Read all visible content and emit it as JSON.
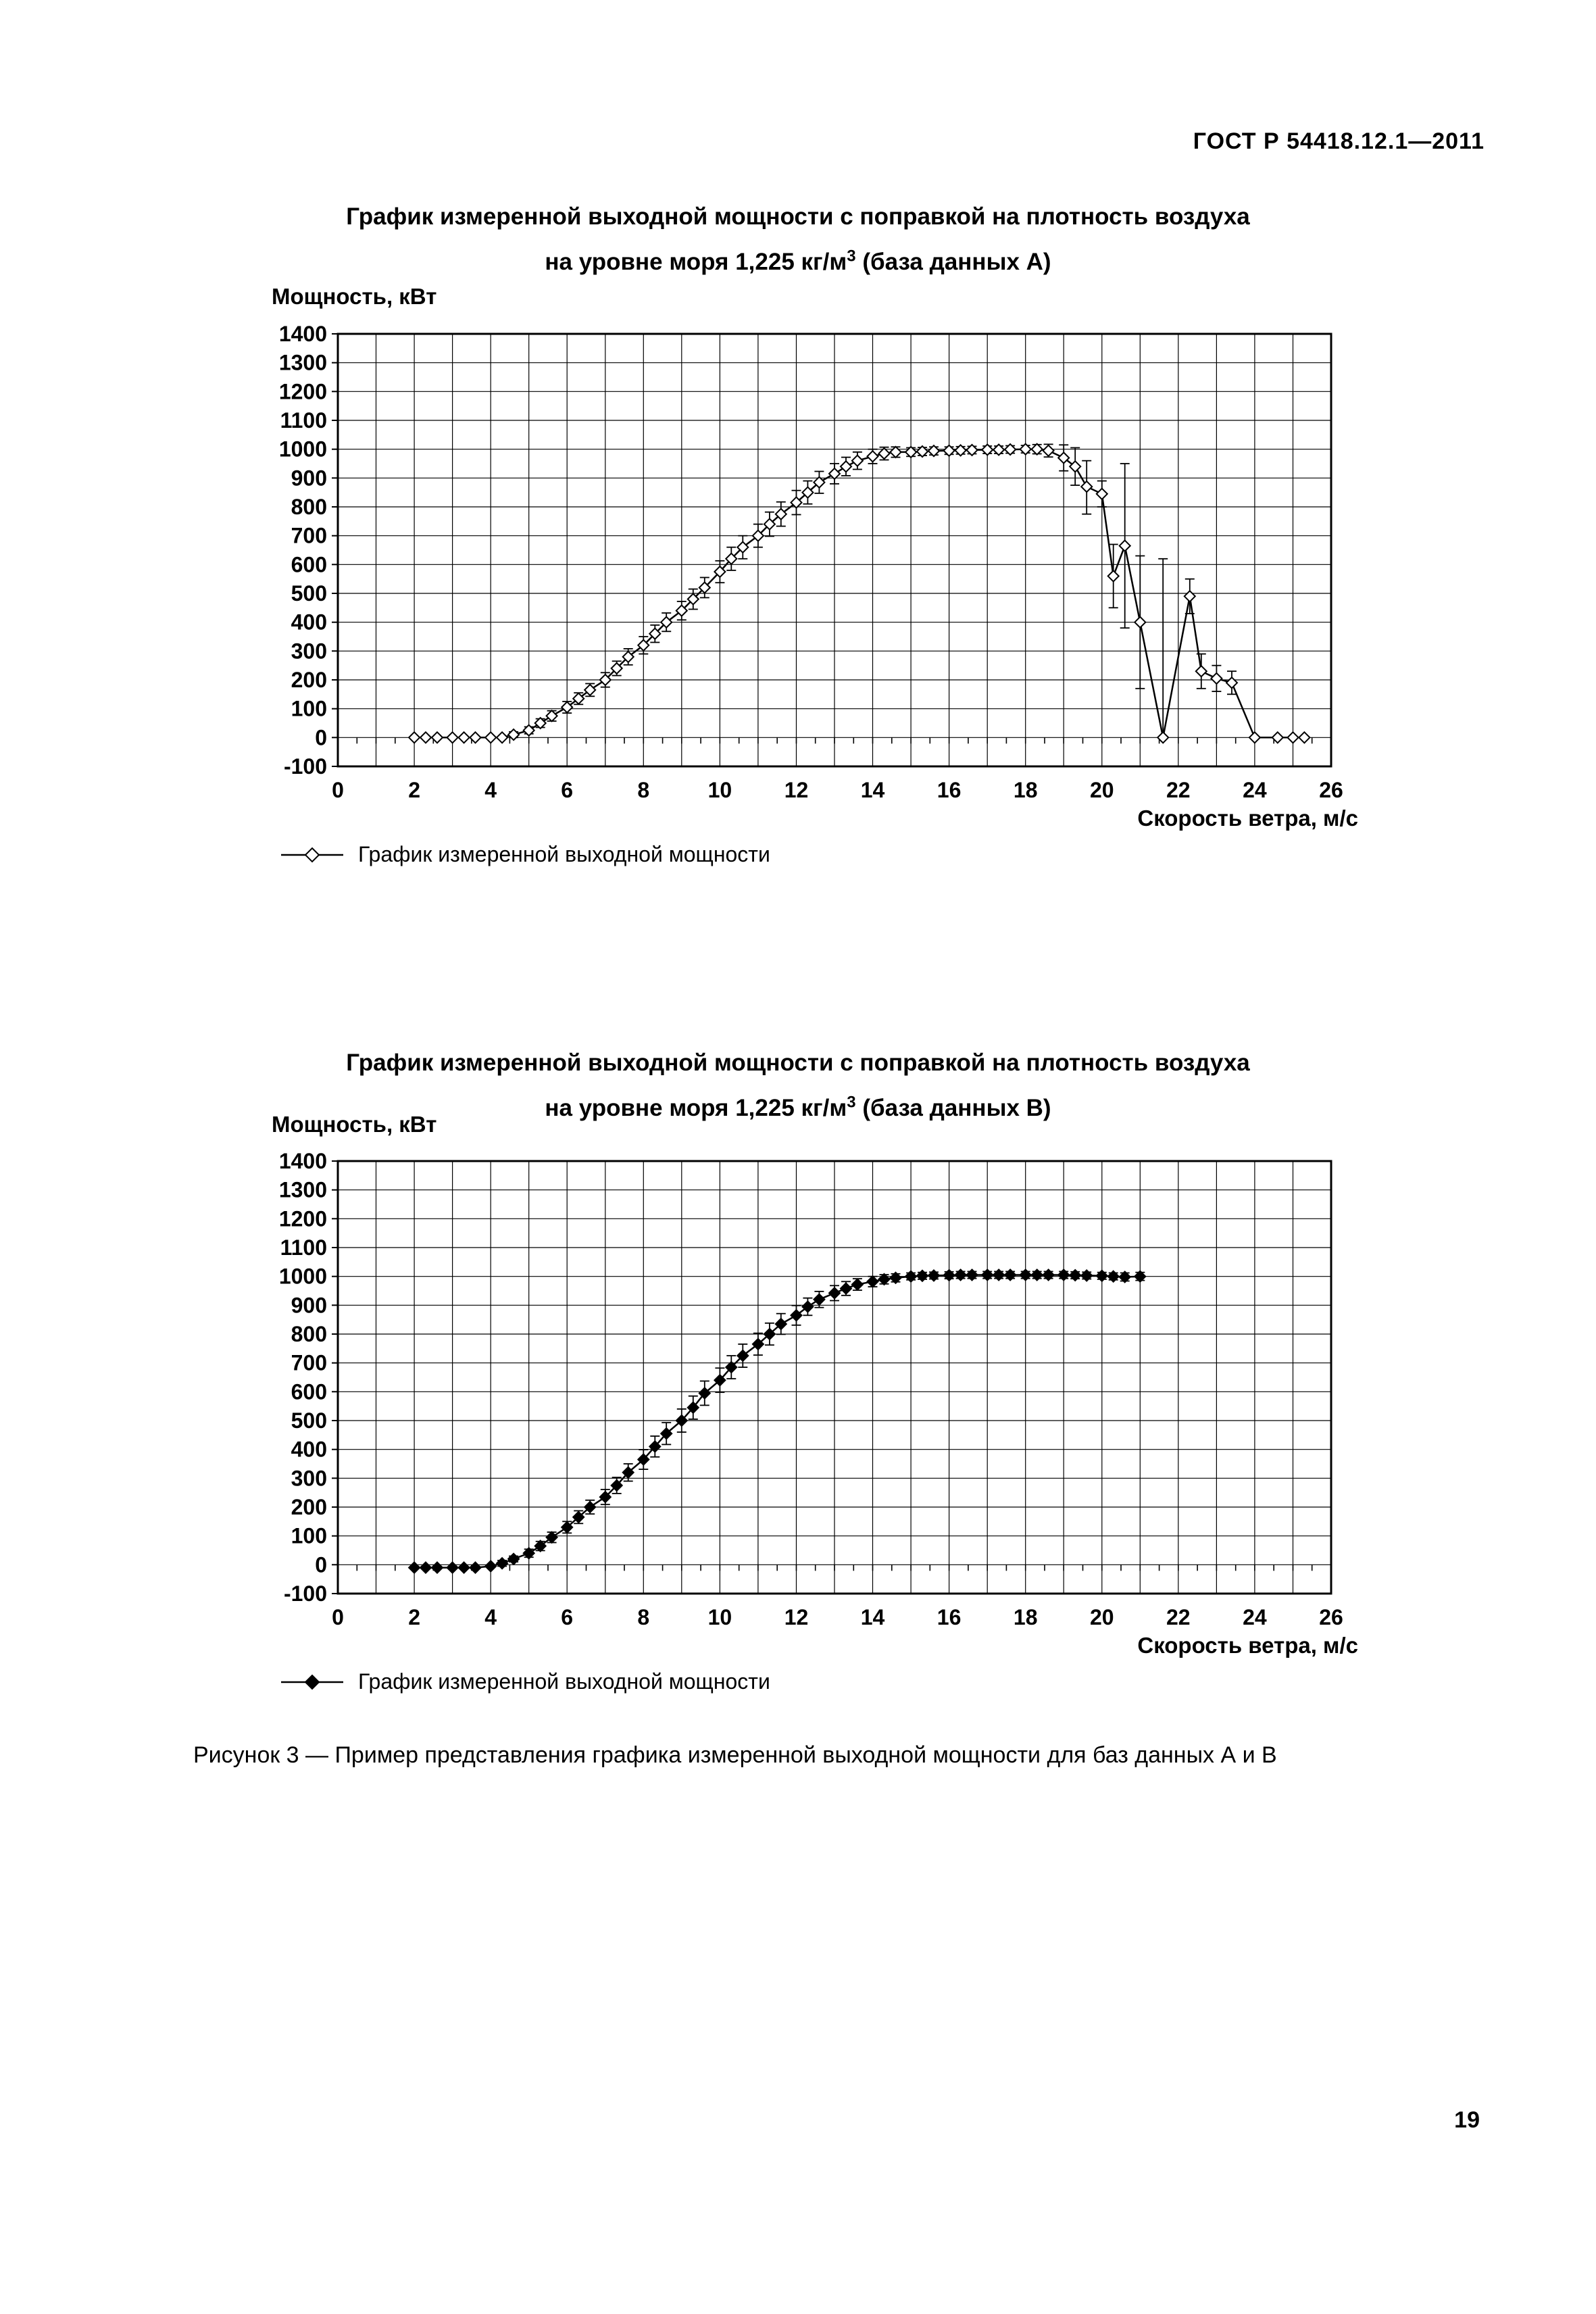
{
  "page": {
    "header": "ГОСТ Р 54418.12.1—2011",
    "caption": "Рисунок 3 — Пример представления графика измеренной выходной мощности для баз данных А и В",
    "page_number": "19"
  },
  "chart_data": [
    {
      "type": "line",
      "title_line1": "График измеренной выходной мощности с поправкой на плотность воздуха",
      "title_line2a": "на уровне моря 1,225 кг/м",
      "title_sup": "3",
      "title_line2b": " (база данных А)",
      "ylabel": "Мощность, кВт",
      "xlabel": "Скорость ветра, м/с",
      "legend": "График измеренной выходной мощности",
      "marker": "open-diamond",
      "xlim": [
        0,
        26
      ],
      "ylim": [
        -100,
        1400
      ],
      "grid_x_step": 1,
      "grid_y_step": 100,
      "zero_tick_step": 0.5,
      "xticks": [
        0,
        2,
        4,
        6,
        8,
        10,
        12,
        14,
        16,
        18,
        20,
        22,
        24,
        26
      ],
      "yticks": [
        -100,
        0,
        100,
        200,
        300,
        400,
        500,
        600,
        700,
        800,
        900,
        1000,
        1100,
        1200,
        1300,
        1400
      ],
      "points": [
        [
          2,
          0,
          0
        ],
        [
          2.3,
          0,
          0
        ],
        [
          2.6,
          0,
          0
        ],
        [
          3,
          0,
          0
        ],
        [
          3.3,
          0,
          0
        ],
        [
          3.6,
          0,
          0
        ],
        [
          4,
          0,
          0
        ],
        [
          4.3,
          0,
          0
        ],
        [
          4.6,
          10,
          10
        ],
        [
          5,
          25,
          12
        ],
        [
          5.3,
          50,
          15
        ],
        [
          5.6,
          75,
          18
        ],
        [
          6,
          105,
          20
        ],
        [
          6.3,
          135,
          20
        ],
        [
          6.6,
          165,
          22
        ],
        [
          7,
          200,
          25
        ],
        [
          7.3,
          240,
          25
        ],
        [
          7.6,
          280,
          28
        ],
        [
          8,
          320,
          30
        ],
        [
          8.3,
          360,
          30
        ],
        [
          8.6,
          400,
          32
        ],
        [
          9,
          440,
          32
        ],
        [
          9.3,
          480,
          35
        ],
        [
          9.6,
          520,
          35
        ],
        [
          10,
          575,
          38
        ],
        [
          10.3,
          620,
          40
        ],
        [
          10.6,
          660,
          40
        ],
        [
          11,
          700,
          40
        ],
        [
          11.3,
          740,
          42
        ],
        [
          11.6,
          775,
          42
        ],
        [
          12,
          815,
          42
        ],
        [
          12.3,
          850,
          40
        ],
        [
          12.6,
          885,
          38
        ],
        [
          13,
          915,
          35
        ],
        [
          13.3,
          940,
          32
        ],
        [
          13.6,
          960,
          30
        ],
        [
          14,
          975,
          25
        ],
        [
          14.3,
          985,
          22
        ],
        [
          14.6,
          990,
          18
        ],
        [
          15,
          990,
          15
        ],
        [
          15.3,
          992,
          14
        ],
        [
          15.6,
          994,
          14
        ],
        [
          16,
          995,
          13
        ],
        [
          16.3,
          996,
          13
        ],
        [
          16.6,
          997,
          13
        ],
        [
          17,
          998,
          13
        ],
        [
          17.3,
          998,
          13
        ],
        [
          17.6,
          999,
          13
        ],
        [
          18,
          1000,
          13
        ],
        [
          18.3,
          1000,
          16
        ],
        [
          18.6,
          995,
          22
        ],
        [
          19,
          970,
          45
        ],
        [
          19.3,
          940,
          65
        ],
        [
          19.6,
          870,
          [
            775,
            960
          ]
        ],
        [
          20,
          845,
          45
        ],
        [
          20.3,
          560,
          [
            450,
            670
          ]
        ],
        [
          20.6,
          665,
          [
            380,
            950
          ]
        ],
        [
          21,
          400,
          [
            170,
            630
          ]
        ],
        [
          21.6,
          0,
          [
            0,
            620
          ]
        ],
        [
          22.3,
          490,
          60
        ],
        [
          22.6,
          230,
          60
        ],
        [
          23,
          205,
          45
        ],
        [
          23.4,
          190,
          40
        ],
        [
          24,
          0,
          0
        ],
        [
          24.6,
          0,
          0
        ],
        [
          25,
          0,
          0
        ],
        [
          25.3,
          0,
          0
        ]
      ]
    },
    {
      "type": "line",
      "title_line1": "График измеренной выходной мощности с поправкой на плотность воздуха",
      "title_line2a": "на уровне моря 1,225 кг/м",
      "title_sup": "3",
      "title_line2b": " (база данных В)",
      "ylabel": "Мощность, кВт",
      "xlabel": "Скорость ветра, м/с",
      "legend": "График измеренной выходной мощности",
      "marker": "filled-diamond",
      "xlim": [
        0,
        26
      ],
      "ylim": [
        -100,
        1400
      ],
      "grid_x_step": 1,
      "grid_y_step": 100,
      "zero_tick_step": 0.5,
      "xticks": [
        0,
        2,
        4,
        6,
        8,
        10,
        12,
        14,
        16,
        18,
        20,
        22,
        24,
        26
      ],
      "yticks": [
        -100,
        0,
        100,
        200,
        300,
        400,
        500,
        600,
        700,
        800,
        900,
        1000,
        1100,
        1200,
        1300,
        1400
      ],
      "points": [
        [
          2,
          -10,
          0
        ],
        [
          2.3,
          -10,
          0
        ],
        [
          2.6,
          -10,
          0
        ],
        [
          3,
          -10,
          0
        ],
        [
          3.3,
          -10,
          0
        ],
        [
          3.6,
          -10,
          0
        ],
        [
          4,
          -5,
          0
        ],
        [
          4.3,
          5,
          10
        ],
        [
          4.6,
          20,
          10
        ],
        [
          5,
          40,
          14
        ],
        [
          5.3,
          65,
          16
        ],
        [
          5.6,
          95,
          18
        ],
        [
          6,
          130,
          20
        ],
        [
          6.3,
          165,
          22
        ],
        [
          6.6,
          200,
          24
        ],
        [
          7,
          235,
          26
        ],
        [
          7.3,
          275,
          28
        ],
        [
          7.6,
          320,
          30
        ],
        [
          8,
          365,
          34
        ],
        [
          8.3,
          410,
          36
        ],
        [
          8.6,
          455,
          38
        ],
        [
          9,
          500,
          40
        ],
        [
          9.3,
          545,
          40
        ],
        [
          9.6,
          595,
          42
        ],
        [
          10,
          640,
          42
        ],
        [
          10.3,
          685,
          40
        ],
        [
          10.6,
          725,
          40
        ],
        [
          11,
          765,
          38
        ],
        [
          11.3,
          800,
          38
        ],
        [
          11.6,
          835,
          36
        ],
        [
          12,
          865,
          34
        ],
        [
          12.3,
          895,
          30
        ],
        [
          12.6,
          920,
          28
        ],
        [
          13,
          942,
          26
        ],
        [
          13.3,
          958,
          24
        ],
        [
          13.6,
          972,
          20
        ],
        [
          14,
          982,
          18
        ],
        [
          14.3,
          990,
          16
        ],
        [
          14.6,
          995,
          14
        ],
        [
          15,
          1000,
          12
        ],
        [
          15.3,
          1002,
          12
        ],
        [
          15.6,
          1003,
          12
        ],
        [
          16,
          1004,
          12
        ],
        [
          16.3,
          1005,
          12
        ],
        [
          16.6,
          1005,
          12
        ],
        [
          17,
          1005,
          12
        ],
        [
          17.3,
          1005,
          12
        ],
        [
          17.6,
          1005,
          12
        ],
        [
          18,
          1005,
          12
        ],
        [
          18.3,
          1005,
          12
        ],
        [
          18.6,
          1005,
          12
        ],
        [
          19,
          1005,
          12
        ],
        [
          19.3,
          1004,
          12
        ],
        [
          19.6,
          1003,
          12
        ],
        [
          20,
          1002,
          12
        ],
        [
          20.3,
          1000,
          12
        ],
        [
          20.6,
          998,
          14
        ],
        [
          21,
          1000,
          14
        ]
      ]
    }
  ]
}
